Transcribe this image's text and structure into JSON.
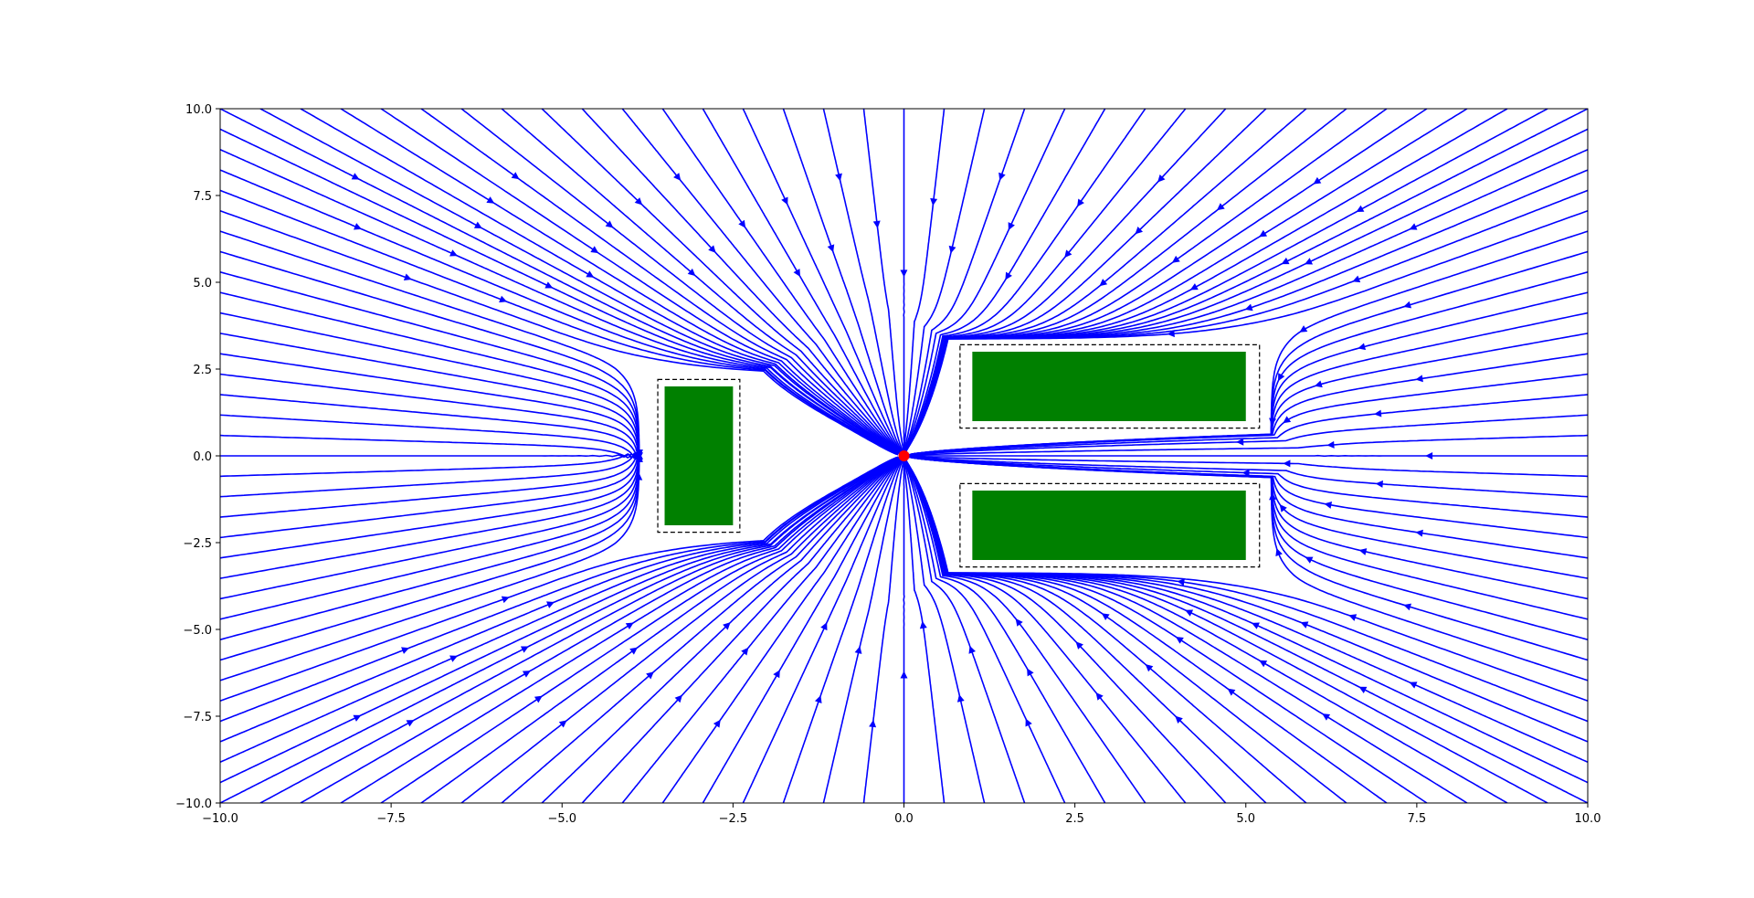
{
  "chart_data": {
    "type": "streamplot",
    "title": "",
    "xlabel": "",
    "ylabel": "",
    "xlim": [
      -10,
      10
    ],
    "ylim": [
      -10,
      10
    ],
    "grid": false,
    "x_ticks": [
      -10,
      -7.5,
      -5,
      -2.5,
      0,
      2.5,
      5,
      7.5,
      10
    ],
    "x_tick_labels": [
      "−10.0",
      "−7.5",
      "−5.0",
      "−2.5",
      "0.0",
      "2.5",
      "5.0",
      "7.5",
      "10.0"
    ],
    "y_ticks": [
      -10,
      -7.5,
      -5,
      -2.5,
      0,
      2.5,
      5,
      7.5,
      10
    ],
    "y_tick_labels": [
      "−10.0",
      "−7.5",
      "−5.0",
      "−2.5",
      "0.0",
      "2.5",
      "5.0",
      "7.5",
      "10.0"
    ],
    "sink": {
      "x": 0,
      "y": 0,
      "color": "#ff0000"
    },
    "obstacles": [
      {
        "x0": -3.5,
        "x1": -2.5,
        "y0": -2.0,
        "y1": 2.0
      },
      {
        "x0": 1.0,
        "x1": 5.0,
        "y0": 1.0,
        "y1": 3.0
      },
      {
        "x0": 1.0,
        "x1": 5.0,
        "y0": -3.0,
        "y1": -1.0
      }
    ],
    "safety_boxes": [
      {
        "x0": -3.6,
        "x1": -2.4,
        "y0": -2.2,
        "y1": 2.2
      },
      {
        "x0": 0.82,
        "x1": 5.2,
        "y0": 0.8,
        "y1": 3.2
      },
      {
        "x0": 0.82,
        "x1": 5.2,
        "y0": -3.2,
        "y1": -0.8
      }
    ],
    "colors": {
      "stream": "#0000ff",
      "obstacle": "#008000",
      "safety_box": "#000000",
      "sink": "#ff0000"
    }
  }
}
